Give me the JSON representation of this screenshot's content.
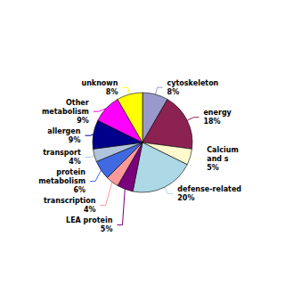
{
  "chart_data": {
    "type": "pie",
    "categories": [
      "cytoskeleton",
      "energy",
      "Calcium\nand s",
      "defense-related",
      "LEA protein",
      "transcription",
      "protein\nmetabolism",
      "transport",
      "allergen",
      "Other\nmetabolism",
      "unknown"
    ],
    "values": [
      8,
      18,
      5,
      20,
      5,
      4,
      6,
      4,
      9,
      9,
      8
    ],
    "value_labels": [
      "8%",
      "18%",
      "5%",
      "20%",
      "5%",
      "4%",
      "6%",
      "4%",
      "9%",
      "9%",
      "8%"
    ],
    "colors": [
      "#9999CC",
      "#8B2252",
      "#FFFACD",
      "#ADD8E6",
      "#7B007B",
      "#FF9999",
      "#4169E1",
      "#B0C4DE",
      "#00008B",
      "#FF00FF",
      "#FFFF00"
    ],
    "data_labels": true
  }
}
